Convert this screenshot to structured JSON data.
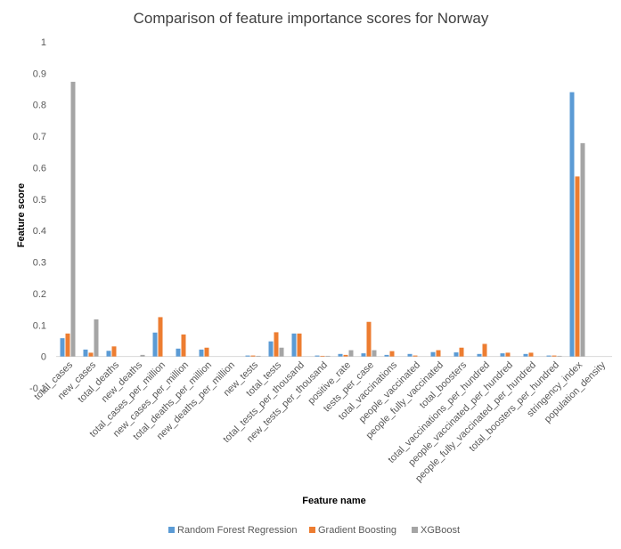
{
  "chart_data": {
    "type": "bar",
    "title": "Comparison of feature importance scores for Norway",
    "xlabel": "Feature name",
    "ylabel": "Feature score",
    "ylim": [
      -0.1,
      1
    ],
    "yticks": [
      "-0.1",
      "0",
      "0.1",
      "0.2",
      "0.3",
      "0.4",
      "0.5",
      "0.6",
      "0.7",
      "0.8",
      "0.9",
      "1"
    ],
    "grid": false,
    "legend_position": "bottom",
    "categories": [
      "total_cases",
      "new_cases",
      "total_deaths",
      "new_deaths",
      "total_cases_per_million",
      "new_cases_per_million",
      "total_deaths_per_million",
      "new_deaths_per_million",
      "new_tests",
      "total_tests",
      "total_tests_per_thousand",
      "new_tests_per_thousand",
      "positive_rate",
      "tests_per_case",
      "total_vaccinations",
      "people_vaccinated",
      "people_fully_vaccinated",
      "total_boosters",
      "total_vaccinations_per_hundred",
      "people_vaccinated_per_hundred",
      "people_fully_vaccinated_per_hundred",
      "total_boosters_per_hundred",
      "stringency_index",
      "population_density"
    ],
    "series": [
      {
        "name": "Random Forest Regression",
        "color": "#5b9bd5",
        "values": [
          0.058,
          0.022,
          0.018,
          0.0,
          0.076,
          0.025,
          0.022,
          0.0,
          0.003,
          0.048,
          0.073,
          0.003,
          0.008,
          0.01,
          0.005,
          0.008,
          0.014,
          0.013,
          0.008,
          0.01,
          0.008,
          0.003,
          0.84,
          0.0
        ]
      },
      {
        "name": "Gradient Boosting",
        "color": "#ed7d31",
        "values": [
          0.073,
          0.012,
          0.032,
          0.0,
          0.125,
          0.07,
          0.028,
          0.0,
          0.003,
          0.077,
          0.073,
          0.002,
          0.005,
          0.11,
          0.017,
          0.003,
          0.02,
          0.028,
          0.04,
          0.012,
          0.012,
          0.003,
          0.572,
          0.0
        ]
      },
      {
        "name": "XGBoost",
        "color": "#a5a5a5",
        "values": [
          0.873,
          0.118,
          0.0,
          0.005,
          0.0,
          0.0,
          0.0,
          0.0,
          0.002,
          0.028,
          0.0,
          0.002,
          0.02,
          0.02,
          0.0,
          0.0,
          0.0,
          0.0,
          0.0,
          0.0,
          0.0,
          0.002,
          0.678,
          0.0
        ]
      }
    ]
  }
}
